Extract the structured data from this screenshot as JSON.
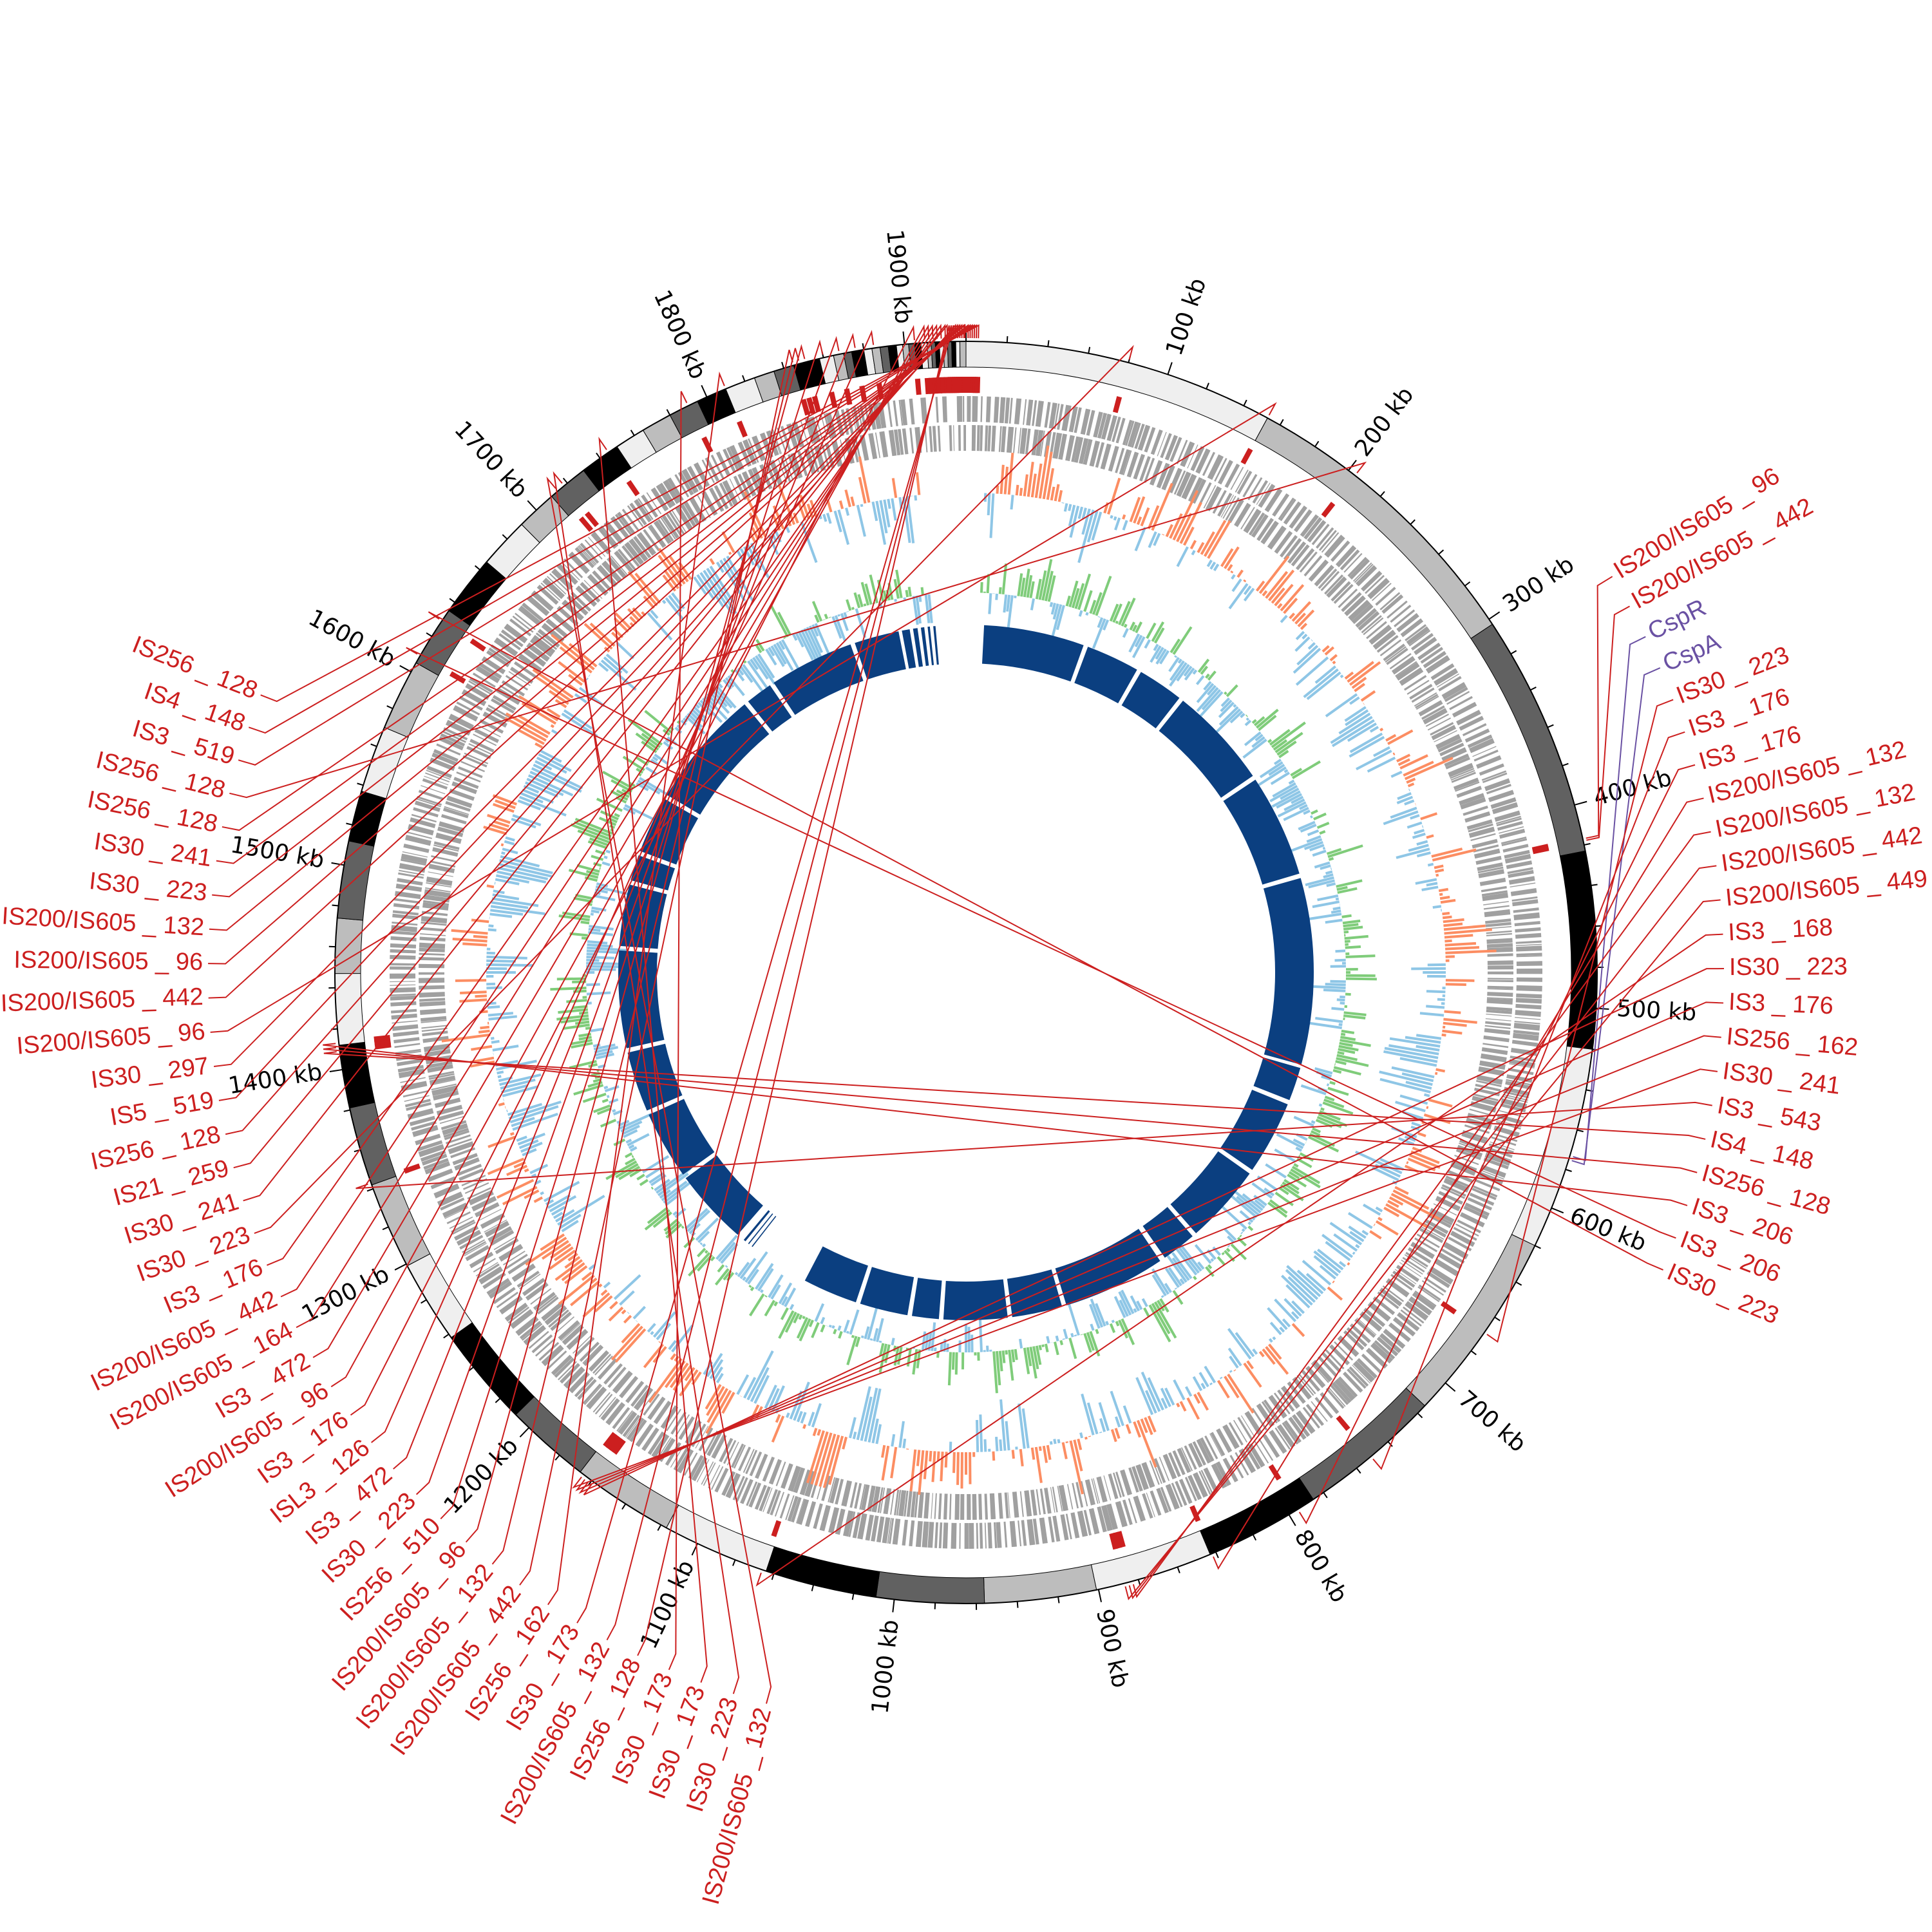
{
  "chart_data": {
    "type": "circular-genome",
    "genome_length_kb": 1930,
    "tick_unit": "kb",
    "major_tick_every_kb": 100,
    "minor_tick_every_kb": 20,
    "tick_labels": [
      "100 kb",
      "200 kb",
      "300 kb",
      "400 kb",
      "500 kb",
      "600 kb",
      "700 kb",
      "800 kb",
      "900 kb",
      "1000 kb",
      "1100 kb",
      "1200 kb",
      "1300 kb",
      "1400 kb",
      "1500 kb",
      "1600 kb",
      "1700 kb",
      "1800 kb",
      "1900 kb"
    ],
    "band_colors": [
      "#efefef",
      "#bdbdbd",
      "#616161",
      "#000000"
    ],
    "band_ends_kb": [
      153,
      303,
      423,
      520,
      620,
      715,
      786,
      843,
      901,
      956,
      1009,
      1064,
      1117,
      1167,
      1209,
      1258,
      1299,
      1342,
      1381,
      1412,
      1447,
      1474,
      1512,
      1537,
      1570,
      1605,
      1635,
      1665,
      1690,
      1710,
      1730,
      1750,
      1765,
      1780,
      1795,
      1810,
      1825,
      1835,
      1845,
      1858,
      1865,
      1870,
      1874,
      1880,
      1884,
      1888,
      1892,
      1896,
      1899,
      1902,
      1905,
      1908,
      1911,
      1913,
      1915,
      1917,
      1919,
      1921,
      1923,
      1925,
      1927,
      1930
    ],
    "colors": {
      "is_element": "#cc1f1f",
      "gene_label": "#6a51a3",
      "genes": "#a0a0a0",
      "track2_pos": "#fc8d62",
      "track2_neg": "#8ec6e6",
      "track3_pos": "#7fcc7a",
      "track3_neg": "#8ec6e6",
      "contigs": "#0b3f80"
    },
    "contig_segments_kb": [
      [
        16,
        106
      ],
      [
        110,
        158
      ],
      [
        162,
        203
      ],
      [
        207,
        298
      ],
      [
        302,
        394
      ],
      [
        398,
        565
      ],
      [
        568,
        598
      ],
      [
        602,
        668
      ],
      [
        672,
        743
      ],
      [
        747,
        778
      ],
      [
        783,
        875
      ],
      [
        879,
        924
      ],
      [
        928,
        985
      ],
      [
        989,
        1013
      ],
      [
        1017,
        1060
      ],
      [
        1064,
        1113
      ],
      [
        1168,
        1169
      ],
      [
        1172,
        1173
      ],
      [
        1176,
        1178
      ],
      [
        1185,
        1253
      ],
      [
        1257,
        1318
      ],
      [
        1322,
        1376
      ],
      [
        1380,
        1467
      ],
      [
        1471,
        1526
      ],
      [
        1530,
        1553
      ],
      [
        1557,
        1608
      ],
      [
        1612,
        1718
      ],
      [
        1722,
        1746
      ],
      [
        1750,
        1826
      ],
      [
        1830,
        1870
      ],
      [
        1873,
        1880
      ],
      [
        1883,
        1887
      ],
      [
        1890,
        1893
      ],
      [
        1896,
        1898
      ],
      [
        1901,
        1903
      ]
    ],
    "is_elements": [
      {
        "name": "IS200/IS605 _ 132",
        "kb": 1714
      },
      {
        "name": "IS30 _ 223",
        "kb": 1718
      },
      {
        "name": "IS30 _ 173",
        "kb": 1745
      },
      {
        "name": "IS30 _ 173",
        "kb": 1790
      },
      {
        "name": "IS256 _ 128",
        "kb": 1922
      },
      {
        "name": "IS200/IS605 _ 132",
        "kb": 1923
      },
      {
        "name": "IS30 _ 173",
        "kb": 1924
      },
      {
        "name": "IS256 _ 162",
        "kb": 1810
      },
      {
        "name": "IS200/IS605 _ 442",
        "kb": 1845
      },
      {
        "name": "IS200/IS605 _ 132",
        "kb": 1848
      },
      {
        "name": "IS200/IS605 _ 96",
        "kb": 1851
      },
      {
        "name": "IS256 _ 510",
        "kb": 1860
      },
      {
        "name": "IS30 _ 223",
        "kb": 1868
      },
      {
        "name": "IS3 _ 472",
        "kb": 1876
      },
      {
        "name": "ISL3 _ 126",
        "kb": 1885
      },
      {
        "name": "IS3 _ 176",
        "kb": 1905
      },
      {
        "name": "IS200/IS605 _ 96",
        "kb": 1910
      },
      {
        "name": "IS3 _ 472",
        "kb": 1912
      },
      {
        "name": "IS200/IS605 _ 164",
        "kb": 1914
      },
      {
        "name": "IS200/IS605 _ 442",
        "kb": 1916
      },
      {
        "name": "IS3 _ 176",
        "kb": 1918
      },
      {
        "name": "IS30 _ 223",
        "kb": 80
      },
      {
        "name": "IS30 _ 241",
        "kb": 1920
      },
      {
        "name": "IS21 _ 259",
        "kb": 1921
      },
      {
        "name": "IS256 _ 128",
        "kb": 1925
      },
      {
        "name": "IS5 _ 519",
        "kb": 1926
      },
      {
        "name": "IS30 _ 297",
        "kb": 1927
      },
      {
        "name": "IS200/IS605 _ 96",
        "kb": 153
      },
      {
        "name": "IS200/IS605 _ 442",
        "kb": 1928
      },
      {
        "name": "IS200/IS605 _ 96",
        "kb": 1929
      },
      {
        "name": "IS200/IS605 _ 132",
        "kb": 1929.5
      },
      {
        "name": "IS30 _ 223",
        "kb": 1
      },
      {
        "name": "IS30 _ 241",
        "kb": 2
      },
      {
        "name": "IS256 _ 128",
        "kb": 3
      },
      {
        "name": "IS256 _ 128",
        "kb": 204
      },
      {
        "name": "IS3 _ 519",
        "kb": 4
      },
      {
        "name": "IS4 _ 148",
        "kb": 5
      },
      {
        "name": "IS256 _ 128",
        "kb": 6
      },
      {
        "name": "IS200/IS605 _ 96",
        "kb": 417
      },
      {
        "name": "IS200/IS605 _ 442",
        "kb": 418
      },
      {
        "name": "CspR",
        "kb": 573,
        "kind": "gene"
      },
      {
        "name": "CspA",
        "kb": 575,
        "kind": "gene"
      },
      {
        "name": "IS30 _ 223",
        "kb": 669
      },
      {
        "name": "IS3 _ 176",
        "kb": 751
      },
      {
        "name": "IS3 _ 176",
        "kb": 795
      },
      {
        "name": "IS200/IS605 _ 132",
        "kb": 842
      },
      {
        "name": "IS200/IS605 _ 132",
        "kb": 883
      },
      {
        "name": "IS200/IS605 _ 442",
        "kb": 885
      },
      {
        "name": "IS200/IS605 _ 449",
        "kb": 887
      },
      {
        "name": "IS3 _ 168",
        "kb": 1066
      },
      {
        "name": "IS30 _ 223",
        "kb": 1159
      },
      {
        "name": "IS3 _ 176",
        "kb": 1161
      },
      {
        "name": "IS256 _ 162",
        "kb": 1163
      },
      {
        "name": "IS30 _ 241",
        "kb": 1165
      },
      {
        "name": "IS3 _ 543",
        "kb": 1343
      },
      {
        "name": "IS4 _ 148",
        "kb": 1409
      },
      {
        "name": "IS256 _ 128",
        "kb": 1411
      },
      {
        "name": "IS3 _ 206",
        "kb": 1413
      },
      {
        "name": "IS3 _ 206",
        "kb": 1609
      },
      {
        "name": "IS30 _ 223",
        "kb": 1629
      }
    ]
  }
}
